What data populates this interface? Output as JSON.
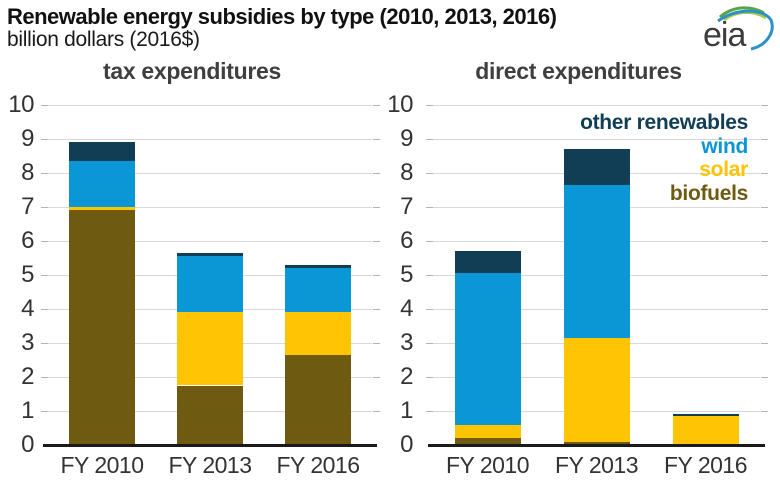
{
  "header": {
    "title": "Renewable energy subsidies by type (2010, 2013, 2016)",
    "subtitle": "billion dollars (2016$)",
    "logo_text": "eia"
  },
  "colors": {
    "other_renewables": "#113d55",
    "wind": "#0b96d5",
    "solar": "#ffc403",
    "biofuels": "#6e5a10",
    "gridline": "#d9d9d9",
    "tick": "#b3b3b3",
    "axis": "#1a1a1a",
    "text": "#333333",
    "heading": "#3f3f3f"
  },
  "legend": {
    "entries": [
      {
        "label": "other renewables",
        "color": "#113d55"
      },
      {
        "label": "wind",
        "color": "#0b96d5"
      },
      {
        "label": "solar",
        "color": "#ffc403"
      },
      {
        "label": "biofuels",
        "color": "#6e5a10"
      }
    ]
  },
  "chart_data": [
    {
      "type": "bar",
      "stacked": true,
      "title": "tax expenditures",
      "categories": [
        "FY 2010",
        "FY 2013",
        "FY 2016"
      ],
      "series": [
        {
          "name": "biofuels",
          "color": "#6e5a10",
          "values": [
            6.9,
            1.75,
            2.65
          ]
        },
        {
          "name": "solar",
          "color": "#ffc403",
          "values": [
            0.1,
            2.15,
            1.25
          ]
        },
        {
          "name": "wind",
          "color": "#0b96d5",
          "values": [
            1.35,
            1.65,
            1.3
          ]
        },
        {
          "name": "other renewables",
          "color": "#113d55",
          "values": [
            0.55,
            0.1,
            0.1
          ]
        }
      ],
      "ylim": [
        0,
        10
      ],
      "ytick_interval": 1,
      "grid": true,
      "legend_position": "none"
    },
    {
      "type": "bar",
      "stacked": true,
      "title": "direct expenditures",
      "categories": [
        "FY 2010",
        "FY 2013",
        "FY 2016"
      ],
      "series": [
        {
          "name": "biofuels",
          "color": "#6e5a10",
          "values": [
            0.2,
            0.1,
            0
          ]
        },
        {
          "name": "solar",
          "color": "#ffc403",
          "values": [
            0.4,
            3.05,
            0.85
          ]
        },
        {
          "name": "wind",
          "color": "#0b96d5",
          "values": [
            4.45,
            4.5,
            0
          ]
        },
        {
          "name": "other renewables",
          "color": "#113d55",
          "values": [
            0.65,
            1.05,
            0.05
          ]
        }
      ],
      "ylim": [
        0,
        10
      ],
      "ytick_interval": 1,
      "grid": true,
      "legend_position": "top-right"
    }
  ]
}
